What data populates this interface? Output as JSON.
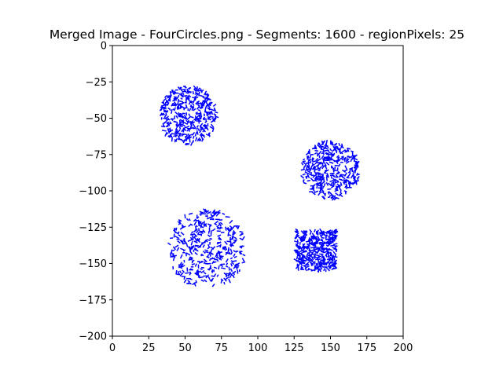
{
  "chart_data": {
    "type": "scatter",
    "title": "Merged Image - FourCircles.png - Segments: 1600 - regionPixels: 25",
    "xlabel": "",
    "ylabel": "",
    "xlim": [
      0,
      200
    ],
    "ylim": [
      -200,
      0
    ],
    "x_ticks": [
      0,
      25,
      50,
      75,
      100,
      125,
      150,
      175,
      200
    ],
    "x_tick_labels": [
      "0",
      "25",
      "50",
      "75",
      "100",
      "125",
      "150",
      "175",
      "200"
    ],
    "y_ticks": [
      0,
      -25,
      -50,
      -75,
      -100,
      -125,
      -150,
      -175,
      -200
    ],
    "y_tick_labels": [
      "0",
      "−25",
      "−50",
      "−75",
      "−100",
      "−125",
      "−150",
      "−175",
      "−200"
    ],
    "grid": false,
    "legend": "none",
    "segment_color": "#0000ff",
    "segment_count": 1600,
    "clusters": [
      {
        "shape": "circle",
        "center": [
          52,
          -48
        ],
        "radius": 20,
        "segments": 400
      },
      {
        "shape": "circle",
        "center": [
          150,
          -86
        ],
        "radius": 20,
        "segments": 400
      },
      {
        "shape": "circle",
        "center": [
          65,
          -140
        ],
        "radius": 27,
        "segments": 400
      },
      {
        "shape": "square",
        "center": [
          140,
          -141
        ],
        "half_width": 14,
        "segments": 400
      }
    ]
  }
}
